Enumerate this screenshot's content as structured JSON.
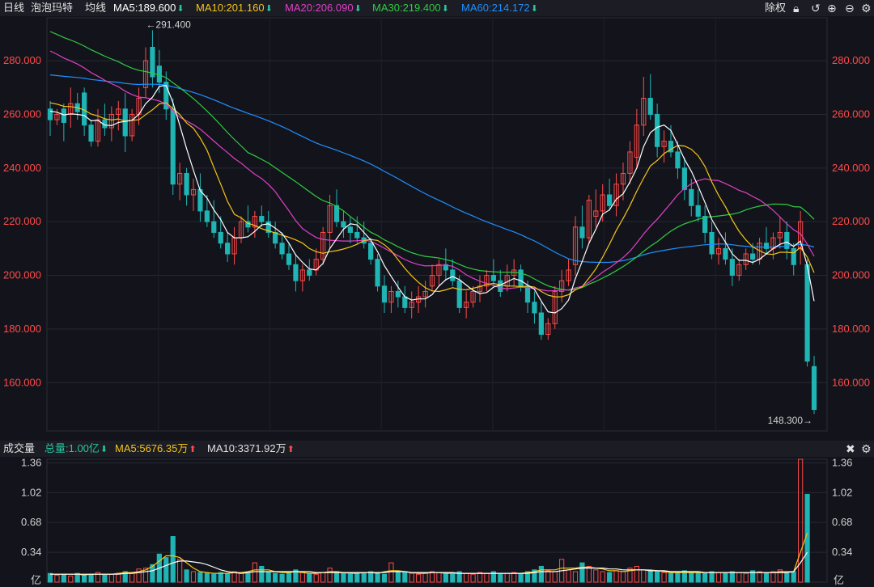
{
  "header": {
    "period_label": "日线",
    "stock_name": "泡泡玛特",
    "ma_type_label": "均线",
    "ma5": "MA5:189.600",
    "ma10": "MA10:201.160",
    "ma20": "MA20:206.090",
    "ma30": "MA30:219.400",
    "ma60": "MA60:214.172",
    "adjust_label": "除权",
    "colors": {
      "ma5": "#ffffff",
      "ma10": "#f5c518",
      "ma20": "#e040c8",
      "ma30": "#2ecc40",
      "ma60": "#1e90ff",
      "up": "#ff4a4a",
      "down": "#1fb5b5"
    }
  },
  "volume_header": {
    "title": "成交量",
    "total": "总量:1.00亿",
    "ma5": "MA5:5676.35万",
    "ma10": "MA10:3371.92万"
  },
  "chart_data": [
    {
      "type": "candlestick",
      "y_ticks": [
        "280.000",
        "260.000",
        "240.000",
        "220.000",
        "200.000",
        "180.000",
        "160.000"
      ],
      "y_tick_values": [
        280,
        260,
        240,
        220,
        200,
        180,
        160
      ],
      "ylim": [
        142,
        296
      ],
      "annotations": {
        "high": "←291.400",
        "low": "148.300→"
      },
      "high_value": 291.4,
      "low_value": 148.3,
      "candles": [
        [
          262,
          265,
          252,
          258
        ],
        [
          258,
          262,
          256,
          260
        ],
        [
          262,
          264,
          250,
          257
        ],
        [
          260,
          270,
          255,
          264
        ],
        [
          264,
          268,
          258,
          261
        ],
        [
          268,
          270,
          252,
          256
        ],
        [
          256,
          258,
          248,
          250
        ],
        [
          250,
          262,
          248,
          258
        ],
        [
          258,
          264,
          252,
          255
        ],
        [
          255,
          263,
          250,
          260
        ],
        [
          260,
          265,
          254,
          262
        ],
        [
          262,
          268,
          246,
          252
        ],
        [
          252,
          262,
          250,
          260
        ],
        [
          260,
          270,
          256,
          266
        ],
        [
          270,
          285,
          266,
          280
        ],
        [
          285,
          291.4,
          270,
          274
        ],
        [
          278,
          284,
          268,
          272
        ],
        [
          272,
          276,
          258,
          262
        ],
        [
          262,
          266,
          230,
          234
        ],
        [
          234,
          242,
          228,
          238
        ],
        [
          238,
          240,
          226,
          230
        ],
        [
          230,
          236,
          224,
          232
        ],
        [
          232,
          238,
          220,
          224
        ],
        [
          224,
          230,
          218,
          220
        ],
        [
          220,
          228,
          214,
          216
        ],
        [
          216,
          222,
          210,
          212
        ],
        [
          212,
          216,
          205,
          208
        ],
        [
          208,
          218,
          204,
          214
        ],
        [
          214,
          222,
          212,
          220
        ],
        [
          220,
          226,
          216,
          218
        ],
        [
          218,
          224,
          214,
          222
        ],
        [
          222,
          226,
          218,
          220
        ],
        [
          220,
          224,
          214,
          216
        ],
        [
          216,
          220,
          210,
          212
        ],
        [
          212,
          216,
          206,
          208
        ],
        [
          208,
          212,
          202,
          204
        ],
        [
          204,
          208,
          194,
          198
        ],
        [
          198,
          204,
          194,
          202
        ],
        [
          202,
          206,
          198,
          200
        ],
        [
          202,
          210,
          200,
          206
        ],
        [
          206,
          218,
          204,
          216
        ],
        [
          216,
          230,
          210,
          226
        ],
        [
          226,
          232,
          218,
          220
        ],
        [
          220,
          224,
          214,
          218
        ],
        [
          218,
          222,
          212,
          216
        ],
        [
          216,
          222,
          212,
          214
        ],
        [
          214,
          220,
          210,
          212
        ],
        [
          212,
          214,
          204,
          206
        ],
        [
          206,
          208,
          194,
          196
        ],
        [
          196,
          200,
          186,
          190
        ],
        [
          190,
          196,
          186,
          194
        ],
        [
          194,
          198,
          188,
          192
        ],
        [
          192,
          196,
          186,
          188
        ],
        [
          188,
          194,
          184,
          190
        ],
        [
          190,
          196,
          186,
          192
        ],
        [
          192,
          198,
          188,
          194
        ],
        [
          196,
          204,
          194,
          200
        ],
        [
          200,
          206,
          196,
          204
        ],
        [
          204,
          210,
          198,
          202
        ],
        [
          202,
          206,
          196,
          198
        ],
        [
          198,
          200,
          186,
          188
        ],
        [
          188,
          194,
          184,
          190
        ],
        [
          190,
          196,
          188,
          194
        ],
        [
          194,
          200,
          190,
          196
        ],
        [
          196,
          202,
          194,
          200
        ],
        [
          200,
          206,
          196,
          198
        ],
        [
          198,
          202,
          192,
          194
        ],
        [
          196,
          204,
          194,
          200
        ],
        [
          200,
          206,
          196,
          202
        ],
        [
          202,
          204,
          194,
          196
        ],
        [
          196,
          198,
          186,
          190
        ],
        [
          190,
          194,
          182,
          186
        ],
        [
          186,
          190,
          176,
          178
        ],
        [
          178,
          184,
          176,
          182
        ],
        [
          182,
          196,
          180,
          194
        ],
        [
          194,
          202,
          190,
          198
        ],
        [
          198,
          206,
          196,
          202
        ],
        [
          204,
          222,
          200,
          218
        ],
        [
          218,
          226,
          210,
          214
        ],
        [
          214,
          230,
          212,
          228
        ],
        [
          222,
          232,
          218,
          224
        ],
        [
          224,
          234,
          220,
          230
        ],
        [
          230,
          236,
          224,
          226
        ],
        [
          226,
          238,
          222,
          234
        ],
        [
          234,
          242,
          228,
          238
        ],
        [
          238,
          250,
          234,
          246
        ],
        [
          244,
          262,
          240,
          256
        ],
        [
          256,
          274,
          252,
          266
        ],
        [
          266,
          275,
          258,
          260
        ],
        [
          260,
          264,
          244,
          248
        ],
        [
          248,
          254,
          242,
          250
        ],
        [
          250,
          256,
          244,
          246
        ],
        [
          246,
          250,
          236,
          240
        ],
        [
          240,
          244,
          228,
          232
        ],
        [
          232,
          236,
          222,
          226
        ],
        [
          226,
          232,
          220,
          222
        ],
        [
          222,
          226,
          212,
          216
        ],
        [
          216,
          220,
          206,
          208
        ],
        [
          208,
          214,
          204,
          210
        ],
        [
          210,
          216,
          204,
          206
        ],
        [
          206,
          210,
          196,
          200
        ],
        [
          200,
          206,
          198,
          204
        ],
        [
          204,
          210,
          202,
          208
        ],
        [
          208,
          212,
          204,
          206
        ],
        [
          206,
          214,
          204,
          212
        ],
        [
          212,
          218,
          208,
          210
        ],
        [
          210,
          216,
          206,
          214
        ],
        [
          214,
          222,
          210,
          216
        ],
        [
          216,
          220,
          206,
          210
        ],
        [
          210,
          212,
          200,
          204
        ],
        [
          210,
          224,
          204,
          220
        ],
        [
          204,
          206,
          166,
          168
        ],
        [
          166,
          170,
          148.3,
          150
        ]
      ]
    },
    {
      "type": "bar",
      "y_ticks": [
        "1.36",
        "1.02",
        "0.68",
        "0.34"
      ],
      "y_tick_values": [
        1.36,
        1.02,
        0.68,
        0.34
      ],
      "ylim": [
        0.0,
        1.4
      ],
      "unit_label": "亿",
      "values": [
        0.1,
        0.08,
        0.09,
        0.07,
        0.1,
        0.08,
        0.09,
        0.11,
        0.08,
        0.09,
        0.1,
        0.12,
        0.11,
        0.15,
        0.16,
        0.2,
        0.32,
        0.28,
        0.52,
        0.26,
        0.14,
        0.12,
        0.11,
        0.1,
        0.09,
        0.11,
        0.1,
        0.12,
        0.11,
        0.1,
        0.22,
        0.18,
        0.12,
        0.1,
        0.09,
        0.11,
        0.14,
        0.12,
        0.1,
        0.09,
        0.11,
        0.16,
        0.12,
        0.1,
        0.09,
        0.11,
        0.1,
        0.12,
        0.1,
        0.09,
        0.22,
        0.12,
        0.11,
        0.1,
        0.09,
        0.1,
        0.12,
        0.11,
        0.1,
        0.09,
        0.12,
        0.1,
        0.09,
        0.11,
        0.1,
        0.12,
        0.09,
        0.1,
        0.11,
        0.1,
        0.12,
        0.14,
        0.18,
        0.13,
        0.12,
        0.26,
        0.14,
        0.12,
        0.22,
        0.18,
        0.14,
        0.12,
        0.11,
        0.13,
        0.12,
        0.16,
        0.18,
        0.14,
        0.13,
        0.12,
        0.11,
        0.1,
        0.12,
        0.13,
        0.12,
        0.11,
        0.1,
        0.12,
        0.11,
        0.1,
        0.12,
        0.11,
        0.1,
        0.13,
        0.12,
        0.11,
        0.12,
        0.14,
        0.1,
        0.12,
        1.4,
        1.0
      ],
      "ma5": [
        0.09,
        0.09,
        0.09,
        0.09,
        0.09,
        0.08,
        0.09,
        0.09,
        0.09,
        0.09,
        0.1,
        0.11,
        0.11,
        0.12,
        0.14,
        0.18,
        0.24,
        0.3,
        0.3,
        0.28,
        0.22,
        0.16,
        0.12,
        0.11,
        0.1,
        0.1,
        0.1,
        0.11,
        0.11,
        0.12,
        0.14,
        0.14,
        0.14,
        0.12,
        0.11,
        0.11,
        0.12,
        0.11,
        0.1,
        0.1,
        0.11,
        0.12,
        0.12,
        0.11,
        0.1,
        0.1,
        0.11,
        0.11,
        0.1,
        0.12,
        0.13,
        0.13,
        0.12,
        0.11,
        0.1,
        0.1,
        0.11,
        0.11,
        0.1,
        0.1,
        0.1,
        0.1,
        0.1,
        0.1,
        0.1,
        0.1,
        0.1,
        0.1,
        0.1,
        0.1,
        0.11,
        0.12,
        0.14,
        0.14,
        0.14,
        0.16,
        0.16,
        0.16,
        0.17,
        0.17,
        0.16,
        0.15,
        0.13,
        0.13,
        0.12,
        0.13,
        0.14,
        0.14,
        0.14,
        0.13,
        0.12,
        0.11,
        0.11,
        0.11,
        0.11,
        0.11,
        0.11,
        0.11,
        0.11,
        0.11,
        0.11,
        0.11,
        0.11,
        0.11,
        0.11,
        0.11,
        0.11,
        0.12,
        0.12,
        0.12,
        0.34,
        0.56
      ],
      "ma10": [
        0.09,
        0.09,
        0.09,
        0.09,
        0.09,
        0.09,
        0.09,
        0.09,
        0.09,
        0.09,
        0.09,
        0.1,
        0.1,
        0.11,
        0.12,
        0.13,
        0.16,
        0.19,
        0.22,
        0.24,
        0.24,
        0.23,
        0.22,
        0.2,
        0.17,
        0.14,
        0.12,
        0.11,
        0.1,
        0.11,
        0.12,
        0.12,
        0.12,
        0.12,
        0.12,
        0.12,
        0.12,
        0.12,
        0.12,
        0.11,
        0.11,
        0.11,
        0.11,
        0.11,
        0.11,
        0.11,
        0.11,
        0.11,
        0.11,
        0.11,
        0.12,
        0.12,
        0.12,
        0.11,
        0.11,
        0.11,
        0.11,
        0.11,
        0.11,
        0.11,
        0.1,
        0.1,
        0.1,
        0.1,
        0.1,
        0.1,
        0.1,
        0.1,
        0.1,
        0.1,
        0.1,
        0.11,
        0.12,
        0.12,
        0.12,
        0.13,
        0.14,
        0.15,
        0.16,
        0.16,
        0.16,
        0.16,
        0.15,
        0.15,
        0.14,
        0.14,
        0.14,
        0.14,
        0.13,
        0.13,
        0.13,
        0.12,
        0.12,
        0.12,
        0.12,
        0.12,
        0.11,
        0.11,
        0.11,
        0.11,
        0.11,
        0.11,
        0.11,
        0.11,
        0.11,
        0.11,
        0.11,
        0.11,
        0.11,
        0.12,
        0.22,
        0.34
      ]
    }
  ]
}
